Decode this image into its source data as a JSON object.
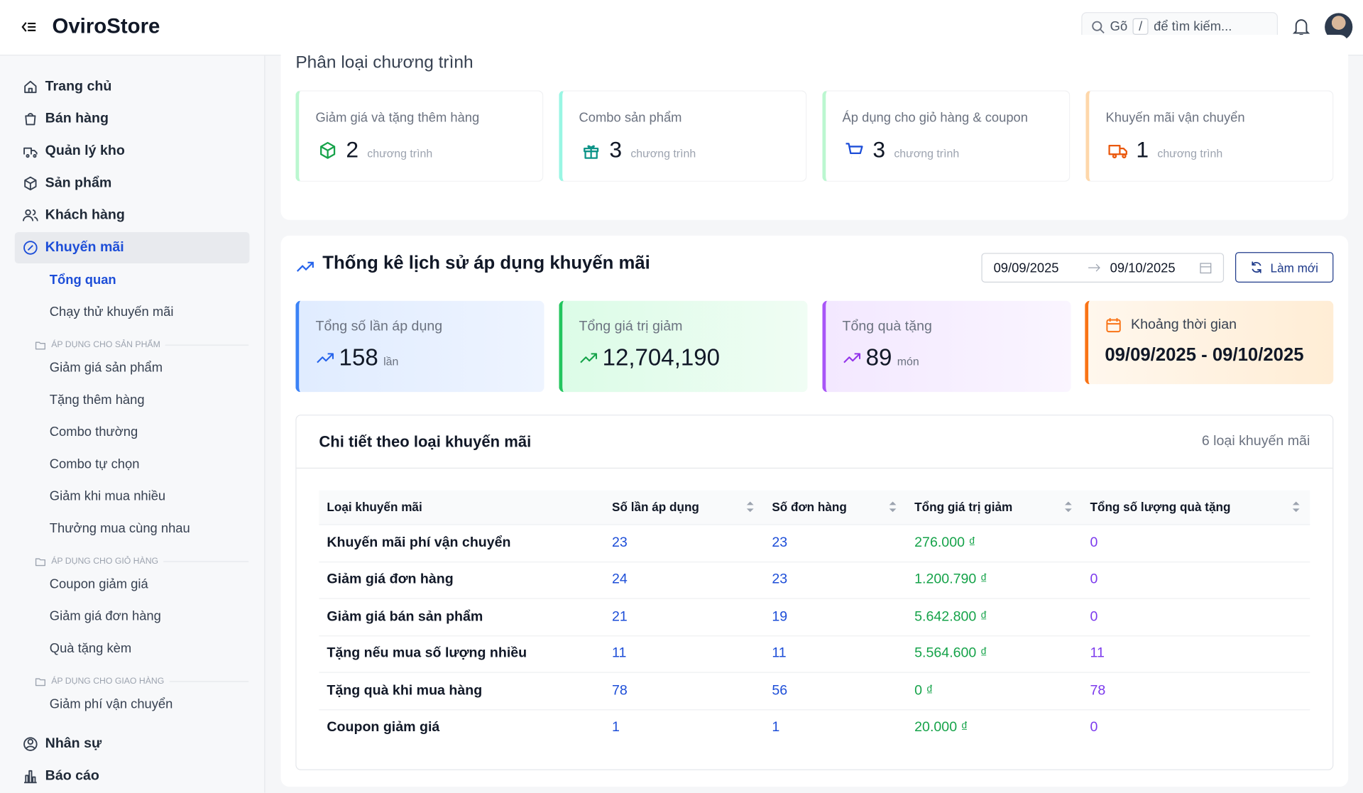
{
  "header": {
    "brand": "OviroStore",
    "search_prefix": "Gõ",
    "search_key": "/",
    "search_suffix": "để tìm kiếm..."
  },
  "sidebar": {
    "items": [
      "Trang chủ",
      "Bán hàng",
      "Quản lý kho",
      "Sản phẩm",
      "Khách hàng",
      "Khuyến mãi"
    ],
    "children": [
      "Tổng quan",
      "Chạy thử khuyến mãi"
    ],
    "groups": [
      {
        "title": "ÁP DỤNG CHO SẢN PHẨM",
        "items": [
          "Giảm giá sản phẩm",
          "Tặng thêm hàng",
          "Combo thường",
          "Combo tự chọn",
          "Giảm khi mua nhiều",
          "Thưởng mua cùng nhau"
        ]
      },
      {
        "title": "ÁP DỤNG CHO GIỎ HÀNG",
        "items": [
          "Coupon giảm giá",
          "Giảm giá đơn hàng",
          "Quà tặng kèm"
        ]
      },
      {
        "title": "ÁP DỤNG CHO GIAO HÀNG",
        "items": [
          "Giảm phí vận chuyển"
        ]
      }
    ],
    "bottom_items": [
      "Nhân sự",
      "Báo cáo"
    ]
  },
  "programs": {
    "title": "Phân loại chương trình",
    "cards": [
      {
        "label": "Giảm giá và tặng thêm hàng",
        "count": 2,
        "unit": "chương trình"
      },
      {
        "label": "Combo sản phẩm",
        "count": 3,
        "unit": "chương trình"
      },
      {
        "label": "Áp dụng cho giỏ hàng & coupon",
        "count": 3,
        "unit": "chương trình"
      },
      {
        "label": "Khuyến mãi vận chuyển",
        "count": 1,
        "unit": "chương trình"
      }
    ]
  },
  "stats": {
    "title": "Thống kê lịch sử áp dụng khuyến mãi",
    "date_from": "09/09/2025",
    "date_to": "09/10/2025",
    "refresh": "Làm mới",
    "cards": [
      {
        "label": "Tổng số lần áp dụng",
        "value": 158,
        "unit": "lần"
      },
      {
        "label": "Tổng giá trị giảm",
        "value": "12,704,190"
      },
      {
        "label": "Tổng quà tặng",
        "value": 89,
        "unit": "món"
      }
    ],
    "period": {
      "label": "Khoảng thời gian",
      "value": "09/09/2025 - 09/10/2025"
    }
  },
  "detail": {
    "title": "Chi tiết theo loại khuyến mãi",
    "count_label": "6 loại khuyến mãi",
    "columns": [
      "Loại khuyến mãi",
      "Số lần áp dụng",
      "Số đơn hàng",
      "Tổng giá trị giảm",
      "Tổng số lượng quà tặng"
    ],
    "rows": [
      [
        "Khuyến mãi phí vận chuyển",
        23,
        23,
        "276.000 ₫",
        0
      ],
      [
        "Giảm giá đơn hàng",
        24,
        23,
        "1.200.790 ₫",
        0
      ],
      [
        "Giảm giá bán sản phẩm",
        21,
        19,
        "5.642.800 ₫",
        0
      ],
      [
        "Tặng nếu mua số lượng nhiều",
        11,
        11,
        "5.564.600 ₫",
        11
      ],
      [
        "Tặng quà khi mua hàng",
        78,
        56,
        "0 ₫",
        78
      ],
      [
        "Coupon giảm giá",
        1,
        1,
        "20.000 ₫",
        0
      ]
    ]
  }
}
